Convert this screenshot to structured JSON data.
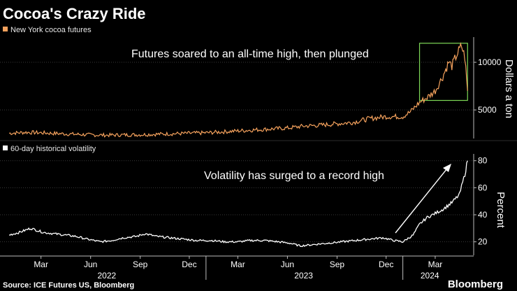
{
  "title": "Cocoa's Crazy Ride",
  "source": "Source: ICE Futures US, Bloomberg",
  "brand": "Bloomberg",
  "colors": {
    "price": "#f5a25d",
    "vol": "#ffffff",
    "box": "#7ed957",
    "background": "#000000"
  },
  "chart_data": [
    {
      "type": "line",
      "legend": "New York cocoa futures",
      "annotation": "Futures soared to an all-time high, then plunged",
      "ylabel": "Dollars a ton",
      "ylim": [
        2000,
        12500
      ],
      "yticks": [
        5000,
        10000
      ],
      "ytick_labels": [
        "5000",
        "10000"
      ],
      "highlight_box": {
        "x_range": [
          "2024-02-01",
          "2024-04-30"
        ],
        "y_range": [
          6000,
          12000
        ]
      },
      "series": [
        {
          "name": "New York cocoa futures",
          "x": [
            "2022-01-01",
            "2022-02-01",
            "2022-03-01",
            "2022-04-01",
            "2022-05-01",
            "2022-06-01",
            "2022-07-01",
            "2022-08-01",
            "2022-09-01",
            "2022-10-01",
            "2022-11-01",
            "2022-12-01",
            "2023-01-01",
            "2023-02-01",
            "2023-03-01",
            "2023-04-01",
            "2023-05-01",
            "2023-06-01",
            "2023-07-01",
            "2023-08-01",
            "2023-09-01",
            "2023-10-01",
            "2023-11-01",
            "2023-12-01",
            "2024-01-01",
            "2024-01-15",
            "2024-02-01",
            "2024-02-15",
            "2024-03-01",
            "2024-03-15",
            "2024-03-26",
            "2024-04-01",
            "2024-04-10",
            "2024-04-19",
            "2024-04-25",
            "2024-04-30"
          ],
          "values": [
            2550,
            2650,
            2600,
            2520,
            2450,
            2380,
            2350,
            2380,
            2400,
            2450,
            2500,
            2550,
            2600,
            2700,
            2800,
            2900,
            3000,
            3100,
            3300,
            3400,
            3550,
            3700,
            4100,
            4300,
            4300,
            4800,
            5800,
            6300,
            7000,
            8500,
            10000,
            9600,
            10800,
            11700,
            10500,
            7000
          ]
        }
      ]
    },
    {
      "type": "line",
      "legend": "60-day historical volatility",
      "annotation": "Volatility has surged to a record high",
      "ylabel": "Percent",
      "ylim": [
        10,
        84
      ],
      "yticks": [
        20,
        40,
        60,
        80
      ],
      "ytick_labels": [
        "20",
        "40",
        "60",
        "80"
      ],
      "series": [
        {
          "name": "60-day historical volatility",
          "x": [
            "2022-01-01",
            "2022-01-20",
            "2022-02-10",
            "2022-03-05",
            "2022-03-25",
            "2022-04-15",
            "2022-05-05",
            "2022-05-25",
            "2022-06-20",
            "2022-07-10",
            "2022-08-01",
            "2022-08-25",
            "2022-09-10",
            "2022-10-01",
            "2022-10-25",
            "2022-11-20",
            "2022-12-15",
            "2023-01-10",
            "2023-02-05",
            "2023-03-01",
            "2023-03-25",
            "2023-04-20",
            "2023-05-15",
            "2023-06-05",
            "2023-06-25",
            "2023-07-20",
            "2023-08-15",
            "2023-09-10",
            "2023-10-05",
            "2023-10-30",
            "2023-11-25",
            "2023-12-15",
            "2024-01-01",
            "2024-01-20",
            "2024-02-01",
            "2024-02-15",
            "2024-03-01",
            "2024-03-15",
            "2024-04-01",
            "2024-04-15",
            "2024-04-25",
            "2024-04-30"
          ],
          "values": [
            25,
            27,
            30,
            27,
            26,
            25,
            24,
            22,
            20,
            21,
            23,
            24,
            26,
            24,
            23,
            22,
            21,
            21,
            20,
            20,
            21,
            21,
            20,
            19,
            17,
            18,
            19,
            20,
            21,
            22,
            23,
            21,
            20,
            25,
            33,
            38,
            41,
            44,
            49,
            55,
            70,
            80
          ]
        }
      ]
    }
  ],
  "x_axis": {
    "month_ticks": [
      "Mar",
      "Jun",
      "Sep",
      "Dec",
      "Mar",
      "Jun",
      "Sep",
      "Dec",
      "Mar"
    ],
    "month_dates": [
      "2022-03-01",
      "2022-06-01",
      "2022-09-01",
      "2022-12-01",
      "2023-03-01",
      "2023-06-01",
      "2023-09-01",
      "2023-12-01",
      "2024-03-01"
    ],
    "year_labels": [
      "2022",
      "2023",
      "2024"
    ],
    "year_centers": [
      "2022-07-01",
      "2023-07-01",
      "2024-02-20"
    ],
    "year_breaks": [
      "2023-01-01",
      "2024-01-01"
    ],
    "range": [
      "2021-12-15",
      "2024-05-01"
    ]
  }
}
